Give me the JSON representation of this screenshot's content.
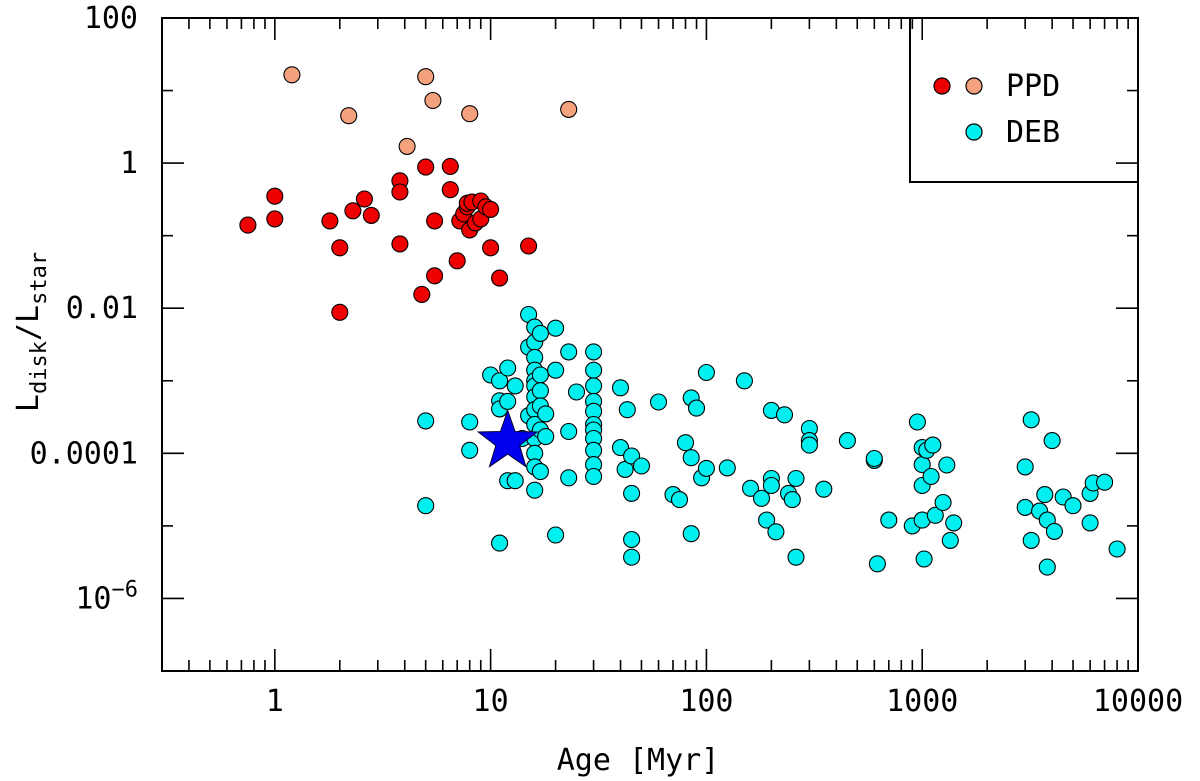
{
  "chart_data": {
    "type": "scatter",
    "xscale": "log",
    "yscale": "log",
    "xlabel": "Age [Myr]",
    "ylabel": {
      "base": "L",
      "num_sub": "disk",
      "sep": "/",
      "den": "L",
      "den_sub": "star"
    },
    "xlim": [
      0.3,
      10000
    ],
    "ylim": [
      1e-07,
      100
    ],
    "x_tick_labels": [
      "1",
      "10",
      "100",
      "1000",
      "10000"
    ],
    "y_tick_labels": [
      {
        "text": "100"
      },
      {
        "text": "1"
      },
      {
        "text": "0.01"
      },
      {
        "text": "0.0001"
      },
      {
        "base": "10",
        "exp": "−6"
      }
    ],
    "legend": {
      "placement": "top-right",
      "entries": [
        {
          "label": "PPD",
          "markers": [
            "#ee0000",
            "#f4a27d"
          ]
        },
        {
          "label": "DEB",
          "markers": [
            "#00f0f0"
          ]
        }
      ]
    },
    "series": [
      {
        "name": "PPD (light)",
        "color": "#f4a27d",
        "points": [
          [
            1.2,
            16.5
          ],
          [
            2.2,
            4.5
          ],
          [
            4.1,
            1.7
          ],
          [
            5.0,
            15.5
          ],
          [
            5.4,
            7.3
          ],
          [
            8.0,
            4.8
          ],
          [
            23,
            5.5
          ]
        ]
      },
      {
        "name": "PPD",
        "color": "#ee0000",
        "points": [
          [
            0.75,
            0.14
          ],
          [
            1.0,
            0.35
          ],
          [
            1.0,
            0.17
          ],
          [
            1.8,
            0.16
          ],
          [
            2.0,
            0.068
          ],
          [
            2.0,
            0.0088
          ],
          [
            2.3,
            0.22
          ],
          [
            2.6,
            0.32
          ],
          [
            2.8,
            0.19
          ],
          [
            3.8,
            0.57
          ],
          [
            3.8,
            0.4
          ],
          [
            3.8,
            0.077
          ],
          [
            4.8,
            0.0155
          ],
          [
            5.0,
            0.88
          ],
          [
            5.5,
            0.16
          ],
          [
            5.5,
            0.028
          ],
          [
            6.5,
            0.9
          ],
          [
            6.5,
            0.43
          ],
          [
            7.0,
            0.045
          ],
          [
            7.2,
            0.16
          ],
          [
            7.5,
            0.2
          ],
          [
            7.8,
            0.25
          ],
          [
            7.8,
            0.28
          ],
          [
            8.0,
            0.12
          ],
          [
            8.2,
            0.29
          ],
          [
            8.5,
            0.15
          ],
          [
            9.0,
            0.3
          ],
          [
            9.0,
            0.17
          ],
          [
            9.5,
            0.25
          ],
          [
            10,
            0.23
          ],
          [
            10,
            0.068
          ],
          [
            11,
            0.026
          ],
          [
            15,
            0.072
          ]
        ]
      },
      {
        "name": "DEB",
        "color": "#00f0f0",
        "points": [
          [
            5.0,
            0.00028
          ],
          [
            5.0,
            1.9e-05
          ],
          [
            8.0,
            0.00027
          ],
          [
            8.0,
            0.00011
          ],
          [
            10,
            0.0012
          ],
          [
            11,
            0.001
          ],
          [
            11,
            0.00053
          ],
          [
            11,
            0.00041
          ],
          [
            11,
            5.8e-06
          ],
          [
            12,
            0.0015
          ],
          [
            12,
            0.00052
          ],
          [
            12,
            4.2e-05
          ],
          [
            13,
            4.2e-05
          ],
          [
            13,
            0.00085
          ],
          [
            14,
            0.00016
          ],
          [
            15,
            0.0082
          ],
          [
            15,
            0.0029
          ],
          [
            15,
            0.00033
          ],
          [
            16,
            0.0055
          ],
          [
            16,
            0.0034
          ],
          [
            16,
            0.0021
          ],
          [
            16,
            0.0014
          ],
          [
            16,
            0.001
          ],
          [
            16,
            0.00085
          ],
          [
            16,
            0.0006
          ],
          [
            16,
            0.0004
          ],
          [
            16,
            0.00025
          ],
          [
            16,
            0.00016
          ],
          [
            16,
            0.0001
          ],
          [
            16,
            6.5e-05
          ],
          [
            16,
            3.1e-05
          ],
          [
            17,
            0.0045
          ],
          [
            17,
            0.0012
          ],
          [
            17,
            0.00073
          ],
          [
            17,
            0.00045
          ],
          [
            17,
            0.00021
          ],
          [
            17,
            5.6e-05
          ],
          [
            18,
            0.00035
          ],
          [
            18,
            0.00017
          ],
          [
            20,
            0.0053
          ],
          [
            20,
            0.0014
          ],
          [
            20,
            7.5e-06
          ],
          [
            23,
            0.0025
          ],
          [
            23,
            0.0002
          ],
          [
            23,
            4.6e-05
          ],
          [
            25,
            0.0007
          ],
          [
            30,
            0.0025
          ],
          [
            30,
            0.0014
          ],
          [
            30,
            0.00085
          ],
          [
            30,
            0.00052
          ],
          [
            30,
            0.00038
          ],
          [
            30,
            0.00025
          ],
          [
            30,
            0.00021
          ],
          [
            30,
            0.00016
          ],
          [
            30,
            0.00011
          ],
          [
            30,
            7e-05
          ],
          [
            30,
            4.8e-05
          ],
          [
            40,
            0.0008
          ],
          [
            40,
            0.00012
          ],
          [
            42,
            6e-05
          ],
          [
            43,
            0.0004
          ],
          [
            45,
            6.5e-06
          ],
          [
            45,
            3.7e-06
          ],
          [
            45,
            2.8e-05
          ],
          [
            45,
            9.2e-05
          ],
          [
            50,
            6.7e-05
          ],
          [
            60,
            0.00051
          ],
          [
            70,
            2.7e-05
          ],
          [
            75,
            2.3e-05
          ],
          [
            80,
            0.00014
          ],
          [
            85,
            0.00058
          ],
          [
            85,
            8.7e-05
          ],
          [
            85,
            7.8e-06
          ],
          [
            90,
            0.00042
          ],
          [
            95,
            4.6e-05
          ],
          [
            100,
            6.2e-05
          ],
          [
            100,
            0.0013
          ],
          [
            125,
            6.3e-05
          ],
          [
            150,
            0.001
          ],
          [
            160,
            3.3e-05
          ],
          [
            180,
            2.4e-05
          ],
          [
            190,
            1.2e-05
          ],
          [
            200,
            0.00039
          ],
          [
            200,
            4.5e-05
          ],
          [
            200,
            3.6e-05
          ],
          [
            210,
            8.3e-06
          ],
          [
            230,
            0.00034
          ],
          [
            240,
            2.8e-05
          ],
          [
            250,
            2.3e-05
          ],
          [
            260,
            4.5e-05
          ],
          [
            260,
            3.7e-06
          ],
          [
            300,
            0.00022
          ],
          [
            300,
            0.00015
          ],
          [
            300,
            0.00013
          ],
          [
            350,
            3.2e-05
          ],
          [
            450,
            0.00015
          ],
          [
            600,
            8e-05
          ],
          [
            600,
            8.5e-05
          ],
          [
            620,
            3e-06
          ],
          [
            700,
            1.2e-05
          ],
          [
            900,
            1e-05
          ],
          [
            950,
            0.00027
          ],
          [
            1000,
            0.00012
          ],
          [
            1000,
            7e-05
          ],
          [
            1000,
            3.6e-05
          ],
          [
            1000,
            1.2e-05
          ],
          [
            1020,
            3.5e-06
          ],
          [
            1050,
            0.00011
          ],
          [
            1100,
            4.8e-05
          ],
          [
            1120,
            0.00013
          ],
          [
            1150,
            1.4e-05
          ],
          [
            1250,
            2.1e-05
          ],
          [
            1300,
            6.9e-05
          ],
          [
            1350,
            6.3e-06
          ],
          [
            1400,
            1.1e-05
          ],
          [
            3000,
            6.5e-05
          ],
          [
            3000,
            1.8e-05
          ],
          [
            3200,
            0.00029
          ],
          [
            3200,
            6.3e-06
          ],
          [
            3500,
            1.6e-05
          ],
          [
            3700,
            2.7e-05
          ],
          [
            3800,
            1.2e-05
          ],
          [
            3800,
            2.7e-06
          ],
          [
            4000,
            0.00015
          ],
          [
            4100,
            8.4e-06
          ],
          [
            4500,
            2.5e-05
          ],
          [
            5000,
            1.9e-05
          ],
          [
            6000,
            2.8e-05
          ],
          [
            6000,
            1.1e-05
          ],
          [
            6200,
            3.9e-05
          ],
          [
            7000,
            4e-05
          ],
          [
            8000,
            4.8e-06
          ]
        ]
      },
      {
        "name": "highlighted star",
        "color": "#0000ee",
        "marker": "star",
        "points": [
          [
            12,
            0.000145
          ]
        ]
      }
    ]
  }
}
